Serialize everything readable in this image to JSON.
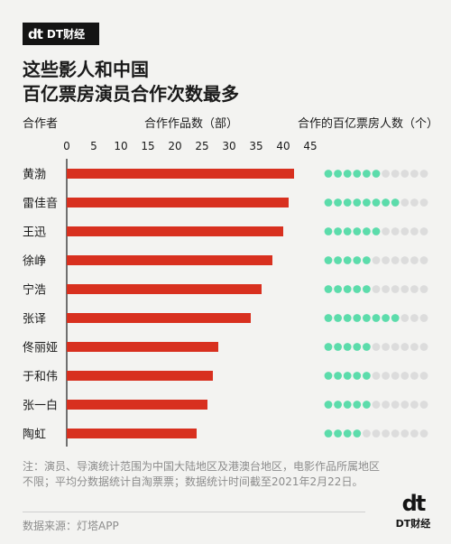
{
  "brand": {
    "mark": "dt",
    "name": "DT财经"
  },
  "title_lines": [
    "这些影人和中国",
    "百亿票房演员合作次数最多"
  ],
  "headers": {
    "person": "合作者",
    "works": "合作作品数（部）",
    "stars": "合作的百亿票房人数（个）"
  },
  "chart_data": {
    "type": "bar",
    "orientation": "horizontal",
    "categories": [
      "黄渤",
      "雷佳音",
      "王迅",
      "徐峥",
      "宁浩",
      "张译",
      "佟丽娅",
      "于和伟",
      "张一白",
      "陶虹"
    ],
    "series": [
      {
        "name": "合作作品数（部）",
        "values": [
          42,
          41,
          40,
          38,
          36,
          34,
          28,
          27,
          26,
          24
        ]
      }
    ],
    "dots": {
      "total": 11,
      "filled": [
        6,
        8,
        6,
        5,
        5,
        8,
        5,
        5,
        5,
        4
      ]
    },
    "xticks": [
      0,
      5,
      10,
      15,
      20,
      25,
      30,
      35,
      40,
      45
    ],
    "xlim": [
      0,
      45
    ],
    "colors": {
      "bar": "#d8301f",
      "dot_filled": "#5cdcab",
      "dot_empty": "#dcdcdc"
    }
  },
  "note": "注：演员、导演统计范围为中国大陆地区及港澳台地区，电影作品所属地区不限；平均分数据统计自淘票票；数据统计时间截至2021年2月22日。",
  "source": "数据来源：灯塔APP",
  "footer_brand": {
    "mark": "dt",
    "name": "DT财经"
  }
}
